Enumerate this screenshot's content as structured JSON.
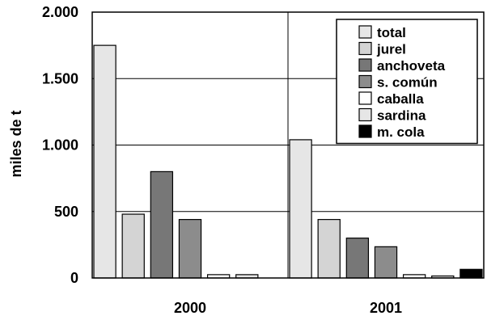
{
  "chart_data": {
    "type": "bar",
    "title": "",
    "xlabel": "",
    "ylabel": "miles de t",
    "categories": [
      "2000",
      "2001"
    ],
    "ylim": [
      0,
      2000
    ],
    "yticks": [
      0,
      500,
      1000,
      1500,
      2000
    ],
    "ytick_labels": [
      "0",
      "500",
      "1.000",
      "1.500",
      "2.000"
    ],
    "grid": "horizontal lines, plus vertical divider between years",
    "legend_position": "top-right",
    "series": [
      {
        "name": "total",
        "color": "#e6e6e6",
        "values": [
          1750,
          1040
        ]
      },
      {
        "name": "jurel",
        "color": "#d4d4d4",
        "values": [
          480,
          440
        ]
      },
      {
        "name": "anchoveta",
        "color": "#777777",
        "values": [
          800,
          300
        ]
      },
      {
        "name": "s. común",
        "color": "#8c8c8c",
        "values": [
          440,
          235
        ]
      },
      {
        "name": "caballa",
        "color": "#ffffff",
        "values": [
          25,
          25
        ]
      },
      {
        "name": "sardina",
        "color": "#e6e6e6",
        "values": [
          25,
          15
        ]
      },
      {
        "name": "m. cola",
        "color": "#000000",
        "values": [
          0,
          65
        ]
      }
    ]
  }
}
